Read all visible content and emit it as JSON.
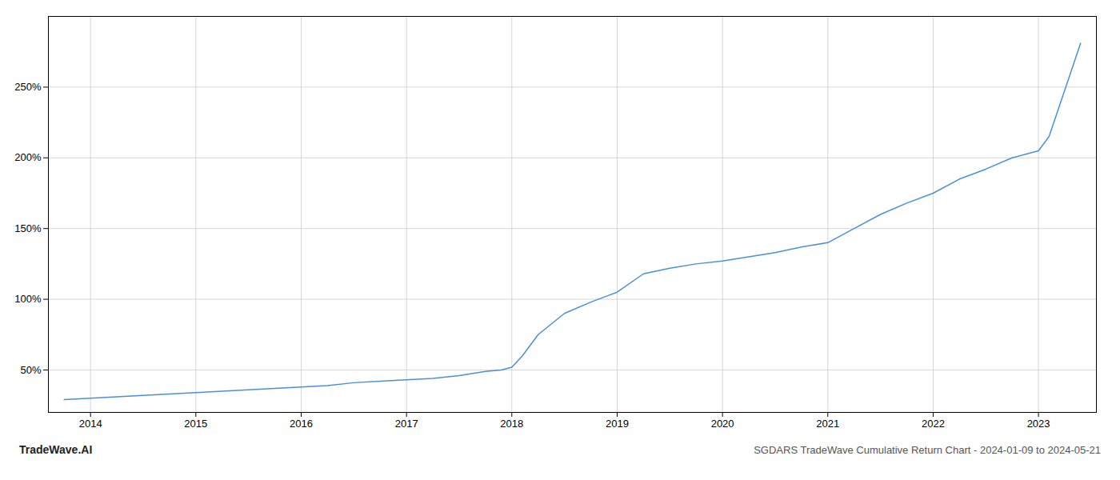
{
  "chart_data": {
    "type": "line",
    "title": "SGDARS TradeWave Cumulative Return Chart - 2024-01-09 to 2024-05-21",
    "annotations": [
      "TradeWave.AI"
    ],
    "color": "#4a90d9",
    "grid": true,
    "x": [
      2013.75,
      2014.0,
      2014.25,
      2014.5,
      2014.75,
      2015.0,
      2015.25,
      2015.5,
      2015.75,
      2016.0,
      2016.25,
      2016.5,
      2016.75,
      2017.0,
      2017.25,
      2017.5,
      2017.75,
      2017.9,
      2018.0,
      2018.1,
      2018.25,
      2018.5,
      2018.75,
      2019.0,
      2019.25,
      2019.5,
      2019.75,
      2020.0,
      2020.25,
      2020.5,
      2020.75,
      2021.0,
      2021.25,
      2021.5,
      2021.75,
      2022.0,
      2022.25,
      2022.5,
      2022.75,
      2023.0,
      2023.1,
      2023.25,
      2023.4
    ],
    "values": [
      29,
      30,
      31,
      32,
      33,
      34,
      35,
      36,
      37,
      38,
      39,
      41,
      42,
      43,
      44,
      46,
      49,
      50,
      52,
      60,
      75,
      90,
      98,
      105,
      118,
      122,
      125,
      127,
      130,
      133,
      137,
      140,
      150,
      160,
      168,
      175,
      185,
      192,
      200,
      205,
      215,
      248,
      281
    ],
    "xlim": [
      2013.6,
      2023.55
    ],
    "xticks": [
      2014,
      2015,
      2016,
      2017,
      2018,
      2019,
      2020,
      2021,
      2022,
      2023
    ],
    "ylim": [
      20,
      300
    ],
    "yticks": [
      {
        "value": 50,
        "label": "50%"
      },
      {
        "value": 100,
        "label": "100%"
      },
      {
        "value": 150,
        "label": "150%"
      },
      {
        "value": 200,
        "label": "200%"
      },
      {
        "value": 250,
        "label": "250%"
      }
    ]
  }
}
